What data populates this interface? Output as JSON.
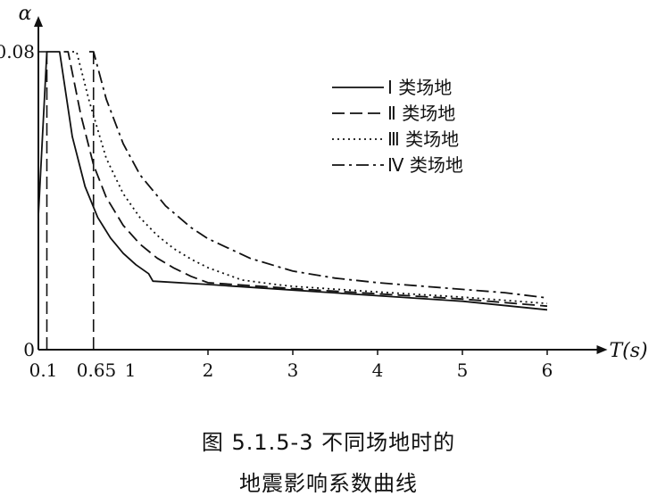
{
  "chart_data": {
    "type": "line",
    "ylabel": "α",
    "xlabel": "T(s)",
    "xlim": [
      0,
      6.5
    ],
    "ylim": [
      0,
      0.08
    ],
    "x_ticks": [
      {
        "value": 0.1,
        "label": "0.1"
      },
      {
        "value": 0.65,
        "label": "0.65"
      },
      {
        "value": 1,
        "label": "1"
      },
      {
        "value": 2,
        "label": "2"
      },
      {
        "value": 3,
        "label": "3"
      },
      {
        "value": 4,
        "label": "4"
      },
      {
        "value": 5,
        "label": "5"
      },
      {
        "value": 6,
        "label": "6"
      }
    ],
    "y_ticks": [
      {
        "value": 0,
        "label": "0"
      },
      {
        "value": 0.08,
        "label": "0.08"
      }
    ],
    "series": [
      {
        "name": "Ⅰ 类场地",
        "style": "solid",
        "color": "#111111",
        "points": [
          [
            0,
            0.036
          ],
          [
            0.1,
            0.08
          ],
          [
            0.25,
            0.08
          ],
          [
            0.4,
            0.0572
          ],
          [
            0.55,
            0.0438
          ],
          [
            0.7,
            0.0355
          ],
          [
            0.85,
            0.03
          ],
          [
            1.0,
            0.0259
          ],
          [
            1.15,
            0.0228
          ],
          [
            1.3,
            0.0204
          ],
          [
            1.35,
            0.0184
          ],
          [
            2.0,
            0.0175
          ],
          [
            3.0,
            0.016
          ],
          [
            4.0,
            0.0145
          ],
          [
            5.0,
            0.013
          ],
          [
            6.0,
            0.0107
          ]
        ]
      },
      {
        "name": "Ⅱ 类场地",
        "style": "dashed",
        "color": "#111111",
        "points": [
          [
            0.3,
            0.08
          ],
          [
            0.35,
            0.08
          ],
          [
            0.5,
            0.0631
          ],
          [
            0.65,
            0.0496
          ],
          [
            0.8,
            0.0409
          ],
          [
            1.0,
            0.0334
          ],
          [
            1.2,
            0.0283
          ],
          [
            1.4,
            0.0246
          ],
          [
            1.6,
            0.0219
          ],
          [
            1.8,
            0.0197
          ],
          [
            2.0,
            0.018
          ],
          [
            2.5,
            0.0172
          ],
          [
            3.0,
            0.0164
          ],
          [
            4.0,
            0.015
          ],
          [
            5.0,
            0.0136
          ],
          [
            6.0,
            0.0117
          ]
        ]
      },
      {
        "name": "Ⅲ 类场地",
        "style": "dotted",
        "color": "#111111",
        "points": [
          [
            0.4,
            0.08
          ],
          [
            0.45,
            0.08
          ],
          [
            0.6,
            0.0667
          ],
          [
            0.8,
            0.0514
          ],
          [
            1.0,
            0.0419
          ],
          [
            1.2,
            0.0354
          ],
          [
            1.4,
            0.0307
          ],
          [
            1.6,
            0.0271
          ],
          [
            1.8,
            0.0243
          ],
          [
            2.0,
            0.022
          ],
          [
            2.4,
            0.0187
          ],
          [
            2.8,
            0.0175
          ],
          [
            3.0,
            0.017
          ],
          [
            4.0,
            0.0155
          ],
          [
            5.0,
            0.0141
          ],
          [
            6.0,
            0.0124
          ]
        ]
      },
      {
        "name": "Ⅳ 类场地",
        "style": "dashdot",
        "color": "#111111",
        "points": [
          [
            0.6,
            0.08
          ],
          [
            0.65,
            0.08
          ],
          [
            0.8,
            0.0673
          ],
          [
            1.0,
            0.0553
          ],
          [
            1.2,
            0.0469
          ],
          [
            1.5,
            0.0386
          ],
          [
            1.8,
            0.0328
          ],
          [
            2.0,
            0.0298
          ],
          [
            2.5,
            0.0245
          ],
          [
            3.0,
            0.0211
          ],
          [
            3.5,
            0.0192
          ],
          [
            4.0,
            0.018
          ],
          [
            4.5,
            0.0171
          ],
          [
            5.0,
            0.0162
          ],
          [
            5.5,
            0.0153
          ],
          [
            6.0,
            0.0139
          ]
        ]
      }
    ],
    "reference_lines": [
      {
        "x": 0.1,
        "style": "dashed"
      },
      {
        "x": 0.65,
        "style": "dashed"
      }
    ],
    "legend_placement": "top-right",
    "grid": false
  },
  "caption": {
    "line1": "图 5.1.5-3   不同场地时的",
    "line2": "地震影响系数曲线"
  }
}
